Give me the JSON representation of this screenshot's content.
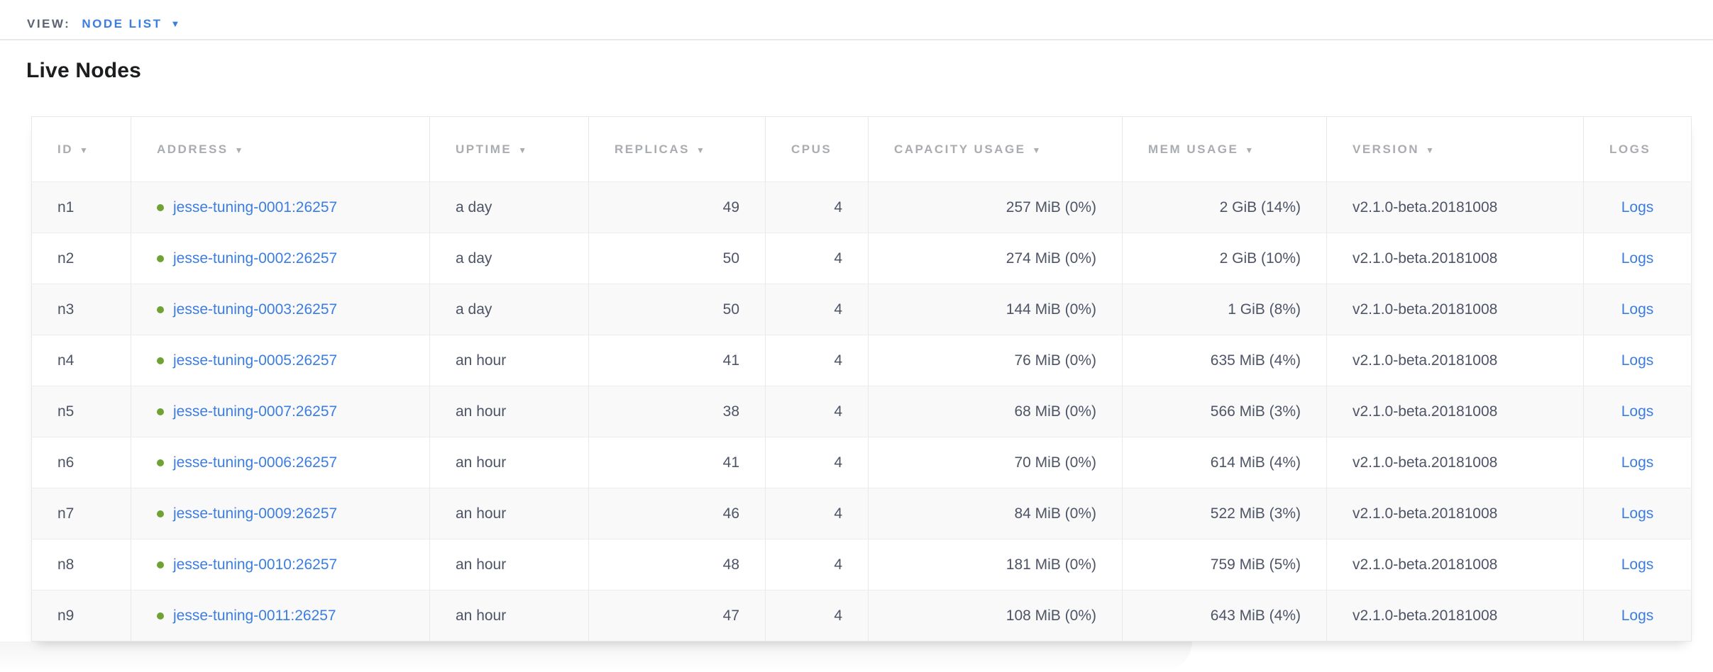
{
  "view_bar": {
    "label": "VIEW:",
    "selected": "NODE LIST",
    "caret_icon": "▼"
  },
  "page": {
    "title": "Live Nodes"
  },
  "colors": {
    "link_blue": "#3b7de1",
    "live_dot_green": "#6ea334",
    "header_gray": "#a9acb1",
    "cell_text": "#4d5466",
    "row_stripe": "#f9f9f9"
  },
  "table": {
    "sort_icon": "▼",
    "columns": [
      {
        "key": "id",
        "label": "ID",
        "sortable": true,
        "align": "left"
      },
      {
        "key": "address",
        "label": "ADDRESS",
        "sortable": true,
        "align": "left",
        "type": "address"
      },
      {
        "key": "uptime",
        "label": "UPTIME",
        "sortable": true,
        "align": "left"
      },
      {
        "key": "replicas",
        "label": "REPLICAS",
        "sortable": true,
        "align": "right"
      },
      {
        "key": "cpus",
        "label": "CPUS",
        "sortable": false,
        "align": "right"
      },
      {
        "key": "capacity_usage",
        "label": "CAPACITY USAGE",
        "sortable": true,
        "align": "right"
      },
      {
        "key": "mem_usage",
        "label": "MEM USAGE",
        "sortable": true,
        "align": "right"
      },
      {
        "key": "version",
        "label": "VERSION",
        "sortable": true,
        "align": "left"
      },
      {
        "key": "logs",
        "label": "LOGS",
        "sortable": false,
        "align": "center",
        "type": "link"
      }
    ],
    "rows": [
      {
        "id": "n1",
        "address": "jesse-tuning-0001:26257",
        "uptime": "a day",
        "replicas": "49",
        "cpus": "4",
        "capacity_usage": "257 MiB (0%)",
        "mem_usage": "2 GiB (14%)",
        "version": "v2.1.0-beta.20181008",
        "logs": "Logs"
      },
      {
        "id": "n2",
        "address": "jesse-tuning-0002:26257",
        "uptime": "a day",
        "replicas": "50",
        "cpus": "4",
        "capacity_usage": "274 MiB (0%)",
        "mem_usage": "2 GiB (10%)",
        "version": "v2.1.0-beta.20181008",
        "logs": "Logs"
      },
      {
        "id": "n3",
        "address": "jesse-tuning-0003:26257",
        "uptime": "a day",
        "replicas": "50",
        "cpus": "4",
        "capacity_usage": "144 MiB (0%)",
        "mem_usage": "1 GiB (8%)",
        "version": "v2.1.0-beta.20181008",
        "logs": "Logs"
      },
      {
        "id": "n4",
        "address": "jesse-tuning-0005:26257",
        "uptime": "an hour",
        "replicas": "41",
        "cpus": "4",
        "capacity_usage": "76 MiB (0%)",
        "mem_usage": "635 MiB (4%)",
        "version": "v2.1.0-beta.20181008",
        "logs": "Logs"
      },
      {
        "id": "n5",
        "address": "jesse-tuning-0007:26257",
        "uptime": "an hour",
        "replicas": "38",
        "cpus": "4",
        "capacity_usage": "68 MiB (0%)",
        "mem_usage": "566 MiB (3%)",
        "version": "v2.1.0-beta.20181008",
        "logs": "Logs"
      },
      {
        "id": "n6",
        "address": "jesse-tuning-0006:26257",
        "uptime": "an hour",
        "replicas": "41",
        "cpus": "4",
        "capacity_usage": "70 MiB (0%)",
        "mem_usage": "614 MiB (4%)",
        "version": "v2.1.0-beta.20181008",
        "logs": "Logs"
      },
      {
        "id": "n7",
        "address": "jesse-tuning-0009:26257",
        "uptime": "an hour",
        "replicas": "46",
        "cpus": "4",
        "capacity_usage": "84 MiB (0%)",
        "mem_usage": "522 MiB (3%)",
        "version": "v2.1.0-beta.20181008",
        "logs": "Logs"
      },
      {
        "id": "n8",
        "address": "jesse-tuning-0010:26257",
        "uptime": "an hour",
        "replicas": "48",
        "cpus": "4",
        "capacity_usage": "181 MiB (0%)",
        "mem_usage": "759 MiB (5%)",
        "version": "v2.1.0-beta.20181008",
        "logs": "Logs"
      },
      {
        "id": "n9",
        "address": "jesse-tuning-0011:26257",
        "uptime": "an hour",
        "replicas": "47",
        "cpus": "4",
        "capacity_usage": "108 MiB (0%)",
        "mem_usage": "643 MiB (4%)",
        "version": "v2.1.0-beta.20181008",
        "logs": "Logs"
      }
    ]
  }
}
